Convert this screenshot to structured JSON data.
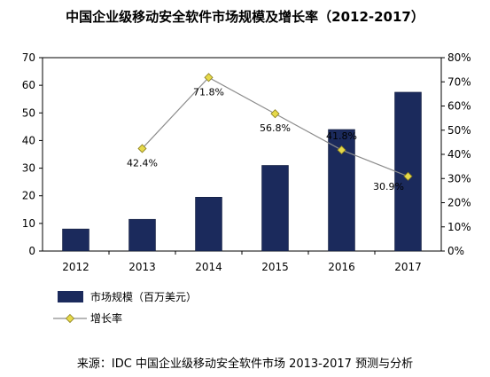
{
  "chart_data": {
    "type": "bar",
    "title": "中国企业级移动安全软件市场规模及增长率（2012-2017）",
    "categories": [
      "2012",
      "2013",
      "2014",
      "2015",
      "2016",
      "2017"
    ],
    "series": [
      {
        "name": "市场规模（百万美元）",
        "type": "bar",
        "axis": "left",
        "values": [
          8,
          11.5,
          19.5,
          31,
          44,
          57.5
        ],
        "color": "#1b2a5c"
      },
      {
        "name": "增长率",
        "type": "line",
        "axis": "right",
        "values": [
          null,
          42.4,
          71.8,
          56.8,
          41.8,
          30.9
        ],
        "data_labels": [
          "",
          "42.4%",
          "71.8%",
          "56.8%",
          "41.8%",
          "30.9%"
        ],
        "color": "#e6d94a",
        "line_color": "#8c8c8c"
      }
    ],
    "y_left": {
      "min": 0,
      "max": 70,
      "ticks": [
        "0",
        "10",
        "20",
        "30",
        "40",
        "50",
        "60",
        "70"
      ]
    },
    "y_right": {
      "min": 0,
      "max": 80,
      "ticks": [
        "0%",
        "10%",
        "20%",
        "30%",
        "40%",
        "50%",
        "60%",
        "70%",
        "80%"
      ]
    },
    "grid": false,
    "legend_position": "bottom-left"
  },
  "source": "来源：IDC 中国企业级移动安全软件市场 2013-2017 预测与分析"
}
